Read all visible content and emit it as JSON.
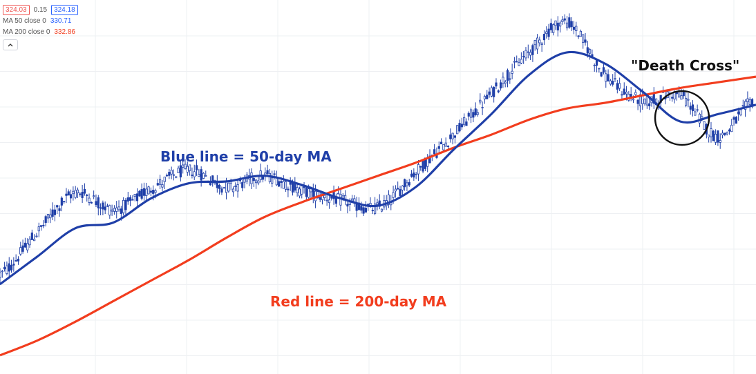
{
  "legend": {
    "price_open": "324.03",
    "spread": "0.15",
    "price_close": "324.18",
    "ma50_label": "MA 50 close 0",
    "ma50_value": "330.71",
    "ma200_label": "MA 200 close 0",
    "ma200_value": "332.86",
    "collapse_icon": "chevron-up-icon"
  },
  "colors": {
    "ma50": "#1f3fa8",
    "ma200": "#f23d1e",
    "candles": "#1f3fa8",
    "grid": "#eef0f3",
    "annotation_blue": "#1f3fa8",
    "annotation_red": "#f23d1e",
    "circle": "#111111"
  },
  "chart_data": {
    "type": "line",
    "description_free": true,
    "grid": true,
    "x": [
      0,
      5,
      10,
      15,
      20,
      25,
      30,
      35,
      40,
      45,
      50,
      55,
      60,
      65,
      70,
      75,
      80,
      85,
      90,
      95,
      100
    ],
    "series": [
      {
        "name": "Blue line = 50-day MA",
        "values": [
          238,
          253,
          268,
          271,
          284,
          292,
          293,
          296,
          291,
          284,
          280,
          290,
          310,
          329,
          350,
          362,
          356,
          341,
          325,
          329,
          334
        ]
      },
      {
        "name": "Red line = 200-day MA",
        "values": [
          200,
          208,
          218,
          229,
          240,
          251,
          263,
          274,
          282,
          289,
          296,
          303,
          311,
          318,
          326,
          332,
          335,
          339,
          343,
          346,
          349
        ]
      },
      {
        "name": "",
        "values": [
          243,
          266,
          287,
          278,
          289,
          299,
          290,
          296,
          288,
          283,
          279,
          298,
          318,
          340,
          362,
          378,
          350,
          336,
          339,
          317,
          338
        ]
      }
    ],
    "ylim": [
      190,
      390
    ],
    "annotations": [
      {
        "text": "Blue line = 50-day MA",
        "color": "blue"
      },
      {
        "text": "Red line = 200-day MA",
        "color": "red"
      },
      {
        "text": "\"Death Cross\"",
        "color": "black"
      }
    ]
  }
}
